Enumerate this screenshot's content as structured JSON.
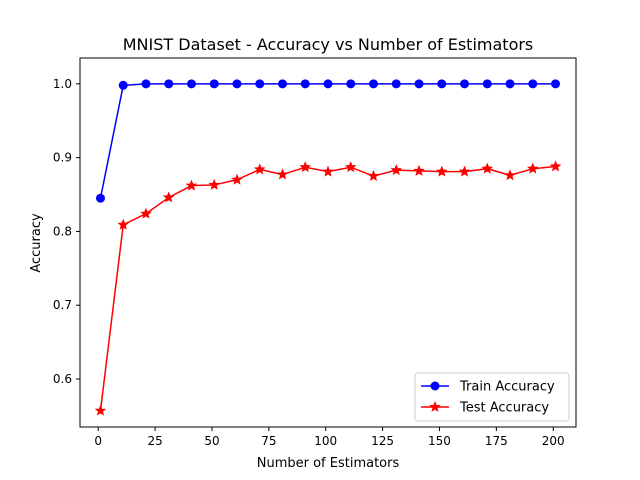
{
  "chart_data": {
    "type": "line",
    "title": "MNIST Dataset - Accuracy vs Number of Estimators",
    "xlabel": "Number of Estimators",
    "ylabel": "Accuracy",
    "xlim": [
      -8,
      210
    ],
    "ylim": [
      0.535,
      1.035
    ],
    "x_ticks": [
      0,
      25,
      50,
      75,
      100,
      125,
      150,
      175,
      200
    ],
    "x_tick_labels": [
      "0",
      "25",
      "50",
      "75",
      "100",
      "125",
      "150",
      "175",
      "200"
    ],
    "y_ticks": [
      0.6,
      0.7,
      0.8,
      0.9,
      1.0
    ],
    "y_tick_labels": [
      "0.6",
      "0.7",
      "0.8",
      "0.9",
      "1.0"
    ],
    "grid": false,
    "legend_position": "lower-right",
    "x": [
      1,
      11,
      21,
      31,
      41,
      51,
      61,
      71,
      81,
      91,
      101,
      111,
      121,
      131,
      141,
      151,
      161,
      171,
      181,
      191,
      201
    ],
    "series": [
      {
        "name": "Train Accuracy",
        "color": "#0000ff",
        "marker": "circle",
        "values": [
          0.845,
          0.998,
          1.0,
          1.0,
          1.0,
          1.0,
          1.0,
          1.0,
          1.0,
          1.0,
          1.0,
          1.0,
          1.0,
          1.0,
          1.0,
          1.0,
          1.0,
          1.0,
          1.0,
          1.0,
          1.0
        ]
      },
      {
        "name": "Test Accuracy",
        "color": "#ff0000",
        "marker": "star",
        "values": [
          0.557,
          0.809,
          0.824,
          0.846,
          0.862,
          0.863,
          0.87,
          0.884,
          0.877,
          0.887,
          0.881,
          0.887,
          0.875,
          0.883,
          0.882,
          0.881,
          0.881,
          0.885,
          0.876,
          0.885,
          0.888
        ]
      }
    ]
  }
}
